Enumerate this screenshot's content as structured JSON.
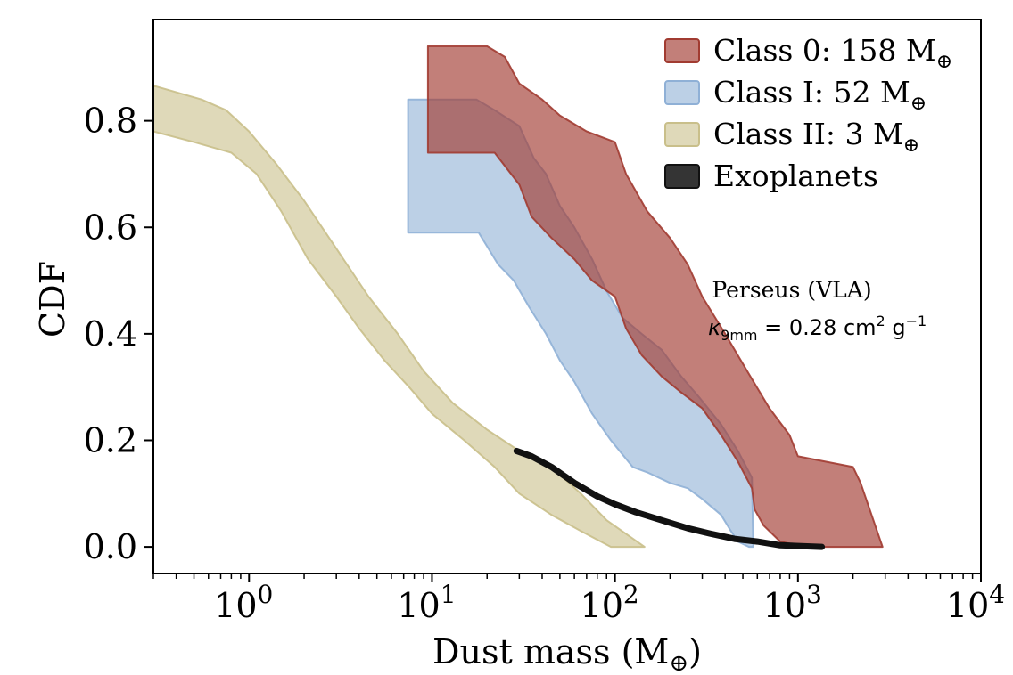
{
  "chart_data": {
    "type": "area",
    "xscale": "log",
    "xlim": [
      0.3,
      10000
    ],
    "ylim": [
      -0.05,
      0.99
    ],
    "xlabel": "Dust mass (M",
    "xlabel_sym": "⊕",
    "xlabel_close": ")",
    "ylabel": "CDF",
    "xticks": [
      {
        "value": 1,
        "base": "10",
        "exp": "0"
      },
      {
        "value": 10,
        "base": "10",
        "exp": "1"
      },
      {
        "value": 100,
        "base": "10",
        "exp": "2"
      },
      {
        "value": 1000,
        "base": "10",
        "exp": "3"
      },
      {
        "value": 10000,
        "base": "10",
        "exp": "4"
      }
    ],
    "yticks": [
      {
        "value": 0.0,
        "label": "0.0"
      },
      {
        "value": 0.2,
        "label": "0.2"
      },
      {
        "value": 0.4,
        "label": "0.4"
      },
      {
        "value": 0.6,
        "label": "0.6"
      },
      {
        "value": 0.8,
        "label": "0.8"
      }
    ],
    "annotation": {
      "line1": "Perseus (VLA)",
      "kappa": "κ",
      "kappa_sub": "9mm",
      "kappa_rest": " = 0.28 cm",
      "kappa_sup1": "2",
      "kappa_g": " g",
      "kappa_sup2": "−1"
    },
    "series": [
      {
        "name": "Class II",
        "legend_label": "Class II: 3 M",
        "legend_sym": "⊕",
        "color": "#c9bf8a",
        "opacity": 0.6,
        "band_upper": [
          [
            0.3,
            0.866
          ],
          [
            0.55,
            0.84
          ],
          [
            0.75,
            0.82
          ],
          [
            1.0,
            0.78
          ],
          [
            1.4,
            0.72
          ],
          [
            2.0,
            0.65
          ],
          [
            3.0,
            0.56
          ],
          [
            4.5,
            0.47
          ],
          [
            6.5,
            0.4
          ],
          [
            9.0,
            0.33
          ],
          [
            13.0,
            0.27
          ],
          [
            20.0,
            0.22
          ],
          [
            30.0,
            0.18
          ],
          [
            45.0,
            0.15
          ],
          [
            65.0,
            0.1
          ],
          [
            90.0,
            0.05
          ],
          [
            145.0,
            0.0
          ]
        ],
        "band_lower": [
          [
            0.3,
            0.78
          ],
          [
            0.5,
            0.76
          ],
          [
            0.8,
            0.74
          ],
          [
            1.1,
            0.7
          ],
          [
            1.5,
            0.63
          ],
          [
            2.1,
            0.54
          ],
          [
            3.0,
            0.47
          ],
          [
            4.0,
            0.41
          ],
          [
            5.5,
            0.35
          ],
          [
            7.5,
            0.3
          ],
          [
            10.0,
            0.25
          ],
          [
            15.0,
            0.2
          ],
          [
            22.0,
            0.15
          ],
          [
            30.0,
            0.1
          ],
          [
            45.0,
            0.06
          ],
          [
            65.0,
            0.03
          ],
          [
            95.0,
            0.0
          ]
        ]
      },
      {
        "name": "Class I",
        "legend_label": "Class I: 52 M",
        "legend_sym": "⊕",
        "color": "#8fb0d6",
        "opacity": 0.6,
        "band_upper": [
          [
            7.4,
            0.84
          ],
          [
            17.5,
            0.84
          ],
          [
            22.0,
            0.82
          ],
          [
            30.0,
            0.79
          ],
          [
            36.0,
            0.73
          ],
          [
            42.0,
            0.7
          ],
          [
            50.0,
            0.64
          ],
          [
            60.0,
            0.6
          ],
          [
            75.0,
            0.54
          ],
          [
            90.0,
            0.48
          ],
          [
            110.0,
            0.43
          ],
          [
            140.0,
            0.4
          ],
          [
            180.0,
            0.37
          ],
          [
            230.0,
            0.32
          ],
          [
            290.0,
            0.28
          ],
          [
            380.0,
            0.23
          ],
          [
            470.0,
            0.18
          ],
          [
            560.0,
            0.13
          ],
          [
            570.0,
            0.0
          ]
        ],
        "band_lower": [
          [
            7.4,
            0.59
          ],
          [
            18.0,
            0.59
          ],
          [
            23.0,
            0.53
          ],
          [
            28.0,
            0.5
          ],
          [
            34.0,
            0.45
          ],
          [
            42.0,
            0.4
          ],
          [
            50.0,
            0.35
          ],
          [
            60.0,
            0.31
          ],
          [
            75.0,
            0.25
          ],
          [
            95.0,
            0.2
          ],
          [
            125.0,
            0.15
          ],
          [
            150.0,
            0.14
          ],
          [
            200.0,
            0.12
          ],
          [
            250.0,
            0.11
          ],
          [
            300.0,
            0.09
          ],
          [
            380.0,
            0.06
          ],
          [
            430.0,
            0.03
          ],
          [
            470.0,
            0.01
          ],
          [
            540.0,
            0.0
          ]
        ]
      },
      {
        "name": "Class 0",
        "legend_label": "Class 0:  158 M",
        "legend_sym": "⊕",
        "color": "#a13b31",
        "opacity": 0.65,
        "band_upper": [
          [
            9.5,
            0.94
          ],
          [
            20.0,
            0.94
          ],
          [
            25.0,
            0.92
          ],
          [
            30.0,
            0.87
          ],
          [
            40.0,
            0.84
          ],
          [
            50.0,
            0.81
          ],
          [
            70.0,
            0.78
          ],
          [
            100.0,
            0.76
          ],
          [
            115.0,
            0.7
          ],
          [
            150.0,
            0.63
          ],
          [
            200.0,
            0.58
          ],
          [
            250.0,
            0.53
          ],
          [
            300.0,
            0.47
          ],
          [
            400.0,
            0.4
          ],
          [
            550.0,
            0.32
          ],
          [
            700.0,
            0.26
          ],
          [
            900.0,
            0.21
          ],
          [
            1000.0,
            0.17
          ],
          [
            2000.0,
            0.15
          ],
          [
            2200.0,
            0.12
          ],
          [
            2900.0,
            0.0
          ]
        ],
        "band_lower": [
          [
            9.5,
            0.74
          ],
          [
            22.0,
            0.74
          ],
          [
            30.0,
            0.68
          ],
          [
            35.0,
            0.62
          ],
          [
            45.0,
            0.58
          ],
          [
            60.0,
            0.54
          ],
          [
            75.0,
            0.5
          ],
          [
            100.0,
            0.47
          ],
          [
            115.0,
            0.41
          ],
          [
            140.0,
            0.36
          ],
          [
            180.0,
            0.32
          ],
          [
            230.0,
            0.29
          ],
          [
            300.0,
            0.26
          ],
          [
            380.0,
            0.21
          ],
          [
            470.0,
            0.16
          ],
          [
            560.0,
            0.11
          ],
          [
            580.0,
            0.07
          ],
          [
            650.0,
            0.04
          ],
          [
            800.0,
            0.01
          ],
          [
            1100.0,
            0.0
          ]
        ]
      },
      {
        "name": "Exoplanets",
        "legend_label": "Exoplanets",
        "legend_sym": "",
        "color": "#111111",
        "opacity": 1,
        "line": [
          [
            29.0,
            0.18
          ],
          [
            35.0,
            0.17
          ],
          [
            45.0,
            0.15
          ],
          [
            60.0,
            0.12
          ],
          [
            80.0,
            0.095
          ],
          [
            100.0,
            0.08
          ],
          [
            130.0,
            0.065
          ],
          [
            180.0,
            0.05
          ],
          [
            250.0,
            0.035
          ],
          [
            330.0,
            0.025
          ],
          [
            450.0,
            0.015
          ],
          [
            600.0,
            0.01
          ],
          [
            800.0,
            0.003
          ],
          [
            1350.0,
            0.0
          ]
        ]
      }
    ],
    "legend_order": [
      "Class 0",
      "Class I",
      "Class II",
      "Exoplanets"
    ],
    "legend_position": "top-right"
  }
}
